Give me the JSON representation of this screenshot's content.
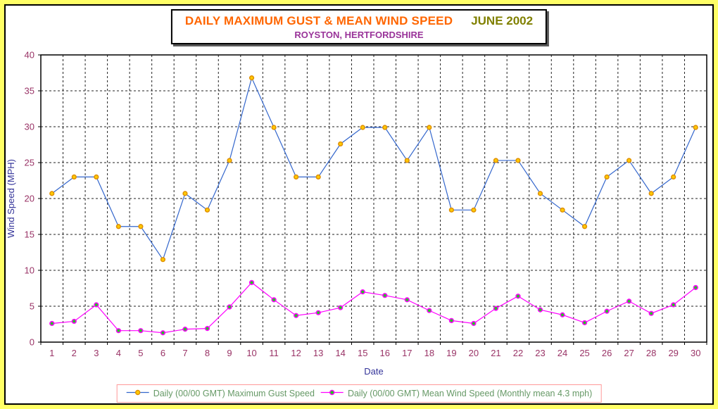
{
  "title": {
    "main": "DAILY MAXIMUM GUST & MEAN WIND SPEED",
    "period": "JUNE 2002",
    "subtitle": "ROYSTON, HERTFORDSHIRE",
    "main_color": "#FF6600",
    "period_color": "#808000",
    "subtitle_color": "#993399"
  },
  "chart_data": {
    "type": "line",
    "title": "DAILY MAXIMUM GUST & MEAN WIND SPEED JUNE 2002",
    "subtitle": "ROYSTON, HERTFORDSHIRE",
    "xlabel": "Date",
    "ylabel": "Wind Speed (MPH)",
    "ylim": [
      0,
      40
    ],
    "ytick_step": 5,
    "grid": "dashed",
    "legend_position": "bottom",
    "categories": [
      1,
      2,
      3,
      4,
      5,
      6,
      7,
      8,
      9,
      10,
      11,
      12,
      13,
      14,
      15,
      16,
      17,
      18,
      19,
      20,
      21,
      22,
      23,
      24,
      25,
      26,
      27,
      28,
      29,
      30
    ],
    "series": [
      {
        "name": "Daily (00/00 GMT) Maximum Gust Speed",
        "line_color": "#3366CC",
        "marker_fill": "#FFCC00",
        "marker_stroke": "#E09000",
        "values": [
          20.7,
          23.0,
          23.0,
          16.1,
          16.1,
          11.5,
          20.7,
          18.4,
          25.3,
          36.8,
          29.9,
          23.0,
          23.0,
          27.6,
          29.9,
          29.9,
          25.3,
          29.9,
          18.4,
          18.4,
          25.3,
          25.3,
          20.7,
          18.4,
          16.1,
          23.0,
          25.3,
          20.7,
          23.0,
          29.9
        ]
      },
      {
        "name": "Daily (00/00 GMT) Mean Wind Speed (Monthly mean 4.3 mph)",
        "line_color": "#FF00FF",
        "marker_fill": "#1FCC1F",
        "marker_stroke": "#FF00FF",
        "values": [
          2.6,
          2.9,
          5.2,
          1.6,
          1.6,
          1.3,
          1.8,
          1.9,
          4.9,
          8.3,
          5.9,
          3.7,
          4.1,
          4.8,
          7.0,
          6.5,
          5.9,
          4.4,
          3.0,
          2.6,
          4.7,
          6.4,
          4.5,
          3.8,
          2.7,
          4.3,
          5.7,
          4.0,
          5.2,
          7.6
        ]
      }
    ],
    "monthly_mean_mph": 4.3
  },
  "axis_style": {
    "tick_label_color": "#993366",
    "axis_title_color": "#333399",
    "gridline_color": "#222222"
  },
  "legend": {
    "border_color": "#FF9999",
    "text_color": "#669966"
  },
  "frame": {
    "outer_background": "#FFFF66",
    "inner_background": "#FFFFFF"
  }
}
